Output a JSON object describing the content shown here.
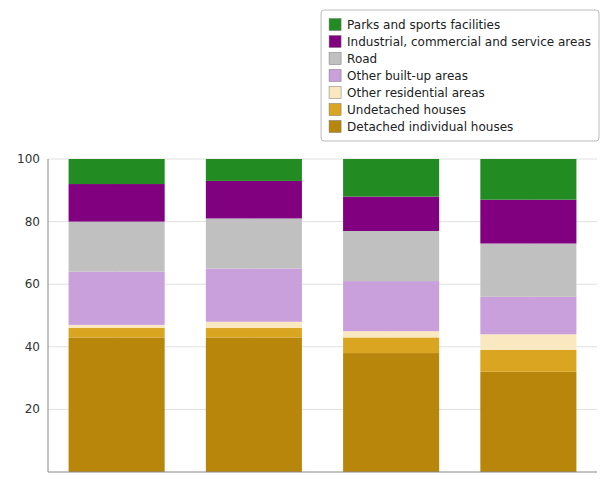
{
  "chart_data": {
    "type": "bar",
    "stacked": true,
    "grid": true,
    "legend": "top-right",
    "tick_labels": "y",
    "categories": [
      null,
      null,
      null,
      null
    ],
    "series": [
      {
        "name": "Detached individual houses",
        "color": "#B8860B",
        "values": [
          43,
          43,
          38,
          32
        ]
      },
      {
        "name": "Undetached houses",
        "color": "#DAA520",
        "values": [
          3,
          3,
          5,
          7
        ]
      },
      {
        "name": "Other residential areas",
        "color": "#FAE8C0",
        "values": [
          1,
          2,
          2,
          5
        ]
      },
      {
        "name": "Other built-up areas",
        "color": "#C9A0DC",
        "values": [
          17,
          17,
          16,
          12
        ]
      },
      {
        "name": "Road",
        "color": "#C0C0C0",
        "values": [
          16,
          16,
          16,
          17
        ]
      },
      {
        "name": "Industrial, commercial and service areas",
        "color": "#800080",
        "values": [
          12,
          12,
          11,
          14
        ]
      },
      {
        "name": "Parks and sports facilities",
        "color": "#228B22",
        "values": [
          8,
          7,
          12,
          13
        ]
      }
    ],
    "ylim": [
      0,
      100
    ],
    "yticks": [
      20,
      40,
      60,
      80,
      100
    ]
  }
}
